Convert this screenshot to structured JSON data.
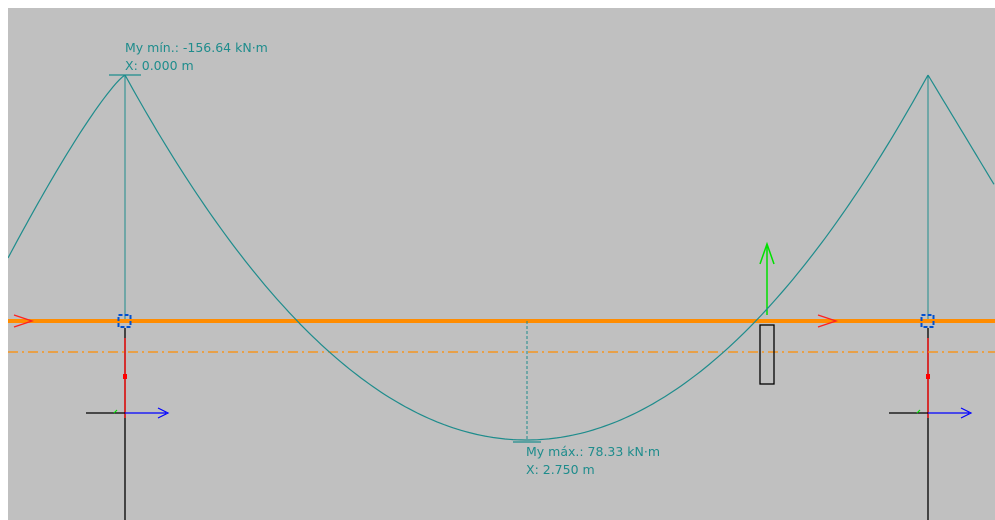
{
  "colors": {
    "background": "#c0c0c0",
    "diagram": "#1e8c8c",
    "beam": "#ff8c00",
    "beam_offset": "#ff8c00",
    "support": "#0050d0",
    "axis_x": "#0000ff",
    "axis_z": "#00e000",
    "column": "#000000",
    "section_marker": "#ff0000"
  },
  "annotations": {
    "min": {
      "value_label": "My mín.: -156.64 kN·m",
      "position_label": "X: 0.000 m"
    },
    "max": {
      "value_label": "My máx.: 78.33 kN·m",
      "position_label": "X: 2.750 m"
    }
  },
  "icons": {
    "beam_direction": "arrow-right-icon",
    "local_axis": "axis-arrow-icon",
    "load_arrow": "arrow-up-icon",
    "support": "support-node-icon"
  }
}
